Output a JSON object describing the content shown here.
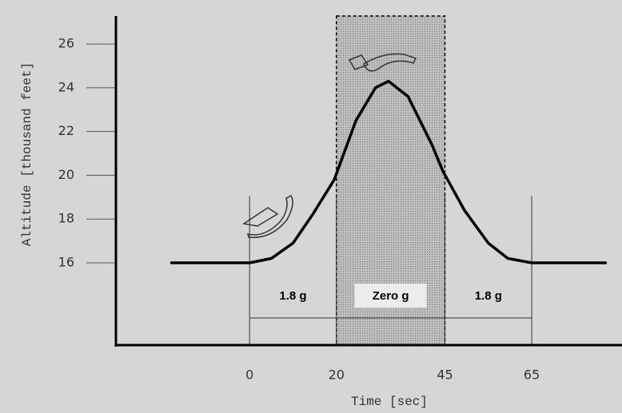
{
  "chart_data": {
    "type": "line",
    "xlabel": "Time [sec]",
    "ylabel": "Altitude [thousand feet]",
    "x": [
      -18,
      0,
      5,
      10,
      14.5,
      19.5,
      24.5,
      29,
      32,
      36.5,
      42,
      44.5,
      49.5,
      55,
      59.5,
      65,
      82
    ],
    "values": [
      16,
      16,
      16.2,
      16.9,
      18.2,
      19.8,
      22.5,
      24,
      24.3,
      23.6,
      21.4,
      20.2,
      18.4,
      16.9,
      16.2,
      16,
      16
    ],
    "color": "#000000",
    "xlim": [
      -30.8,
      85.8
    ],
    "ylim": [
      12.24,
      27.28
    ],
    "xticks": [
      0,
      20,
      45,
      65
    ],
    "yticks": [
      16,
      18,
      20,
      22,
      24,
      26
    ],
    "phases": [
      {
        "label": "1.8 g",
        "start": 0,
        "end": 20,
        "shaded": false
      },
      {
        "label": "Zero g",
        "start": 20,
        "end": 45,
        "shaded": true
      },
      {
        "label": "1.8 g",
        "start": 45,
        "end": 65,
        "shaded": false
      }
    ]
  }
}
